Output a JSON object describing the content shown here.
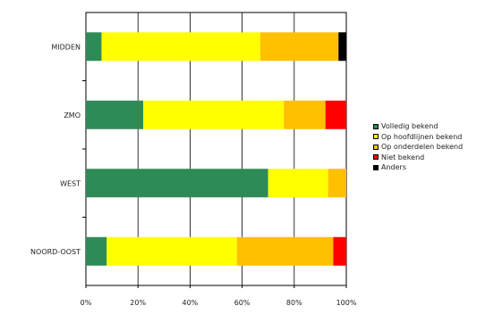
{
  "chart_data": {
    "type": "bar",
    "orientation": "horizontal",
    "stacked": "percent",
    "categories": [
      "MIDDEN",
      "ZMO",
      "WEST",
      "NOORD-OOST"
    ],
    "series": [
      {
        "name": "Volledig bekend",
        "color": "#2e8b57",
        "values": [
          6,
          22,
          70,
          8
        ]
      },
      {
        "name": "Op hoofdlijnen bekend",
        "color": "#ffff00",
        "values": [
          61,
          54,
          23,
          50
        ]
      },
      {
        "name": "Op onderdelen bekend",
        "color": "#ffc000",
        "values": [
          30,
          16,
          7,
          37
        ]
      },
      {
        "name": "Niet bekend",
        "color": "#ff0000",
        "values": [
          0,
          8,
          0,
          5
        ]
      },
      {
        "name": "Anders",
        "color": "#000000",
        "values": [
          3,
          0,
          0,
          0
        ]
      }
    ],
    "xlim": [
      0,
      100
    ],
    "xticks": [
      "0%",
      "20%",
      "40%",
      "60%",
      "80%",
      "100%"
    ],
    "grid": true,
    "legend_position": "right",
    "title": "",
    "xlabel": "",
    "ylabel": ""
  }
}
